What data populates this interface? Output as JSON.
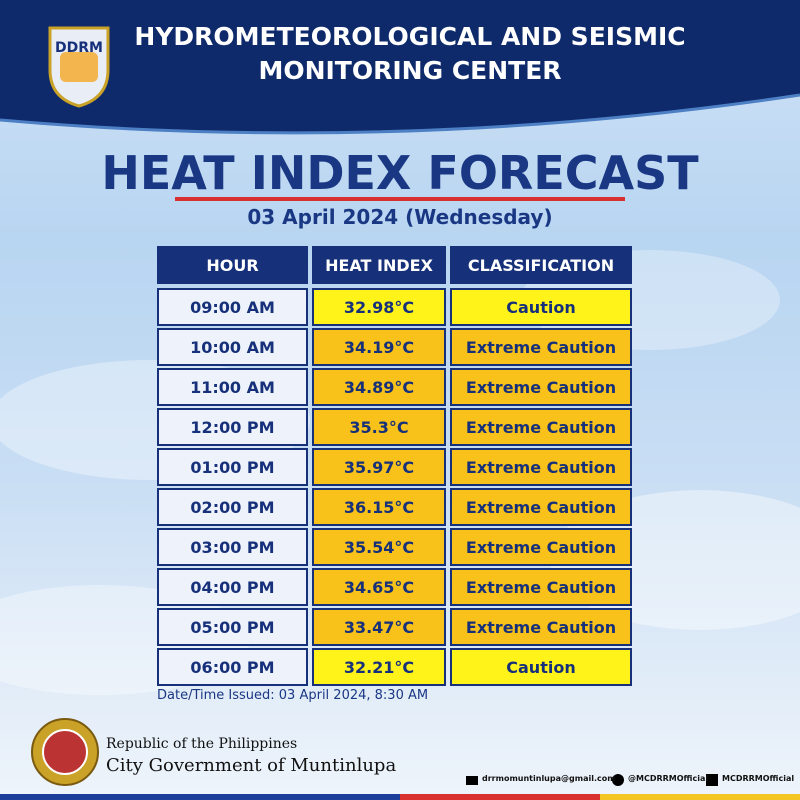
{
  "header": {
    "logo_text": "DDRM",
    "title_line1": "HYDROMETEOROLOGICAL AND SEISMIC",
    "title_line2": "MONITORING CENTER"
  },
  "title": "HEAT INDEX FORECAST",
  "date": "03 April 2024 (Wednesday)",
  "table": {
    "columns": [
      "HOUR",
      "HEAT INDEX",
      "CLASSIFICATION"
    ],
    "rows": [
      {
        "hour": "09:00 AM",
        "heat_index": "32.98°C",
        "classification": "Caution",
        "color": "#fff31a"
      },
      {
        "hour": "10:00 AM",
        "heat_index": "34.19°C",
        "classification": "Extreme Caution",
        "color": "#f8c21a"
      },
      {
        "hour": "11:00 AM",
        "heat_index": "34.89°C",
        "classification": "Extreme Caution",
        "color": "#f8c21a"
      },
      {
        "hour": "12:00 PM",
        "heat_index": "35.3°C",
        "classification": "Extreme Caution",
        "color": "#f8c21a"
      },
      {
        "hour": "01:00 PM",
        "heat_index": "35.97°C",
        "classification": "Extreme Caution",
        "color": "#f8c21a"
      },
      {
        "hour": "02:00 PM",
        "heat_index": "36.15°C",
        "classification": "Extreme Caution",
        "color": "#f8c21a"
      },
      {
        "hour": "03:00 PM",
        "heat_index": "35.54°C",
        "classification": "Extreme Caution",
        "color": "#f8c21a"
      },
      {
        "hour": "04:00 PM",
        "heat_index": "34.65°C",
        "classification": "Extreme Caution",
        "color": "#f8c21a"
      },
      {
        "hour": "05:00 PM",
        "heat_index": "33.47°C",
        "classification": "Extreme Caution",
        "color": "#f8c21a"
      },
      {
        "hour": "06:00 PM",
        "heat_index": "32.21°C",
        "classification": "Caution",
        "color": "#fff31a"
      }
    ]
  },
  "issued": "Date/Time Issued: 03 April 2024, 8:30 AM",
  "footer": {
    "line1": "Republic of the Philippines",
    "line2": "City Government of Muntinlupa",
    "email": "drrmomuntinlupa@gmail.com",
    "twitter": "@MCDRRMOfficial",
    "facebook": "MCDRRMOfficial"
  }
}
